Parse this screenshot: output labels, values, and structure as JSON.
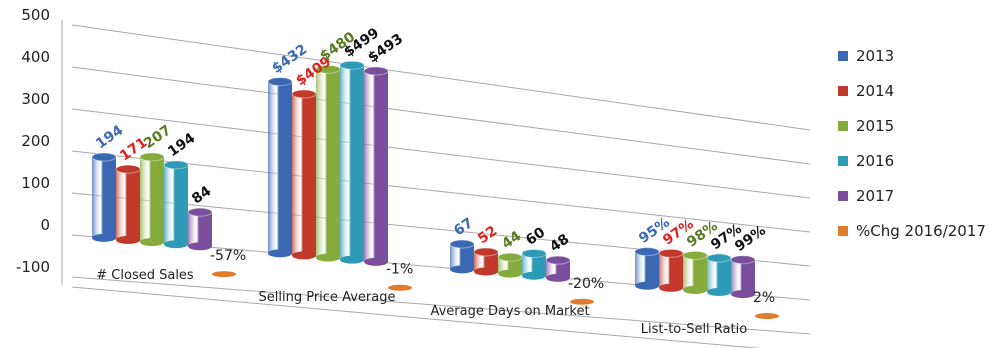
{
  "chart_data": {
    "type": "bar",
    "title": "",
    "xlabel": "",
    "ylabel": "",
    "ylim": [
      -100,
      500
    ],
    "yticks": [
      -100,
      0,
      100,
      200,
      300,
      400,
      500
    ],
    "grid": true,
    "legend_position": "right",
    "categories": [
      "# Closed Sales",
      "Selling Price Average",
      "Average Days on Market",
      "List-to-Sell Ratio"
    ],
    "series": [
      {
        "name": "2013",
        "color": "#3b68b3",
        "values": [
          194,
          432,
          67,
          95
        ],
        "labels": [
          "194",
          "$432",
          "67",
          "95%"
        ],
        "label_color": "#3b68b3"
      },
      {
        "name": "2014",
        "color": "#c0392b",
        "values": [
          171,
          409,
          52,
          97
        ],
        "labels": [
          "171",
          "$409",
          "52",
          "97%"
        ],
        "label_color": "#e02020"
      },
      {
        "name": "2015",
        "color": "#86ab3d",
        "values": [
          207,
          480,
          44,
          98
        ],
        "labels": [
          "207",
          "$480",
          "44",
          "98%"
        ],
        "label_color": "#5a7a22"
      },
      {
        "name": "2016",
        "color": "#2d9ab7",
        "values": [
          194,
          499,
          60,
          97
        ],
        "labels": [
          "194",
          "$499",
          "60",
          "97%"
        ],
        "label_color": "#111111"
      },
      {
        "name": "2017",
        "color": "#7a4e9c",
        "values": [
          84,
          493,
          48,
          99
        ],
        "labels": [
          "84",
          "$493",
          "48",
          "99%"
        ],
        "label_color": "#111111"
      },
      {
        "name": "%Chg 2016/2017",
        "color": "#e07b2e",
        "values": [
          -57,
          -1,
          -20,
          2
        ],
        "labels": [
          "-57%",
          "-1%",
          "-20%",
          "2%"
        ],
        "label_color": "#222222"
      }
    ]
  }
}
